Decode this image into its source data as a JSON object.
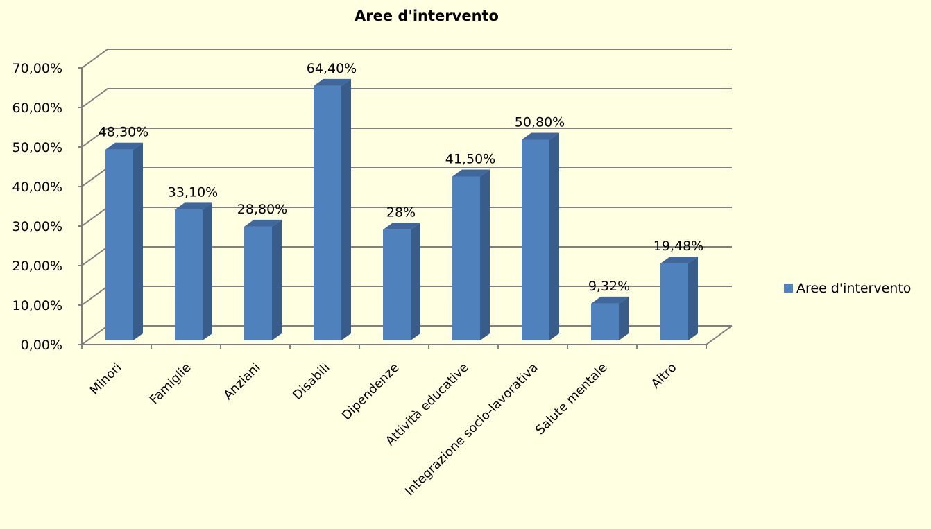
{
  "chart_data": {
    "type": "bar",
    "title": "Aree d'intervento",
    "categories": [
      "Minori",
      "Famiglie",
      "Anziani",
      "Disabili",
      "Dipendenze",
      "Attività educative",
      "Integrazione socio-lavorativa",
      "Salute mentale",
      "Altro"
    ],
    "series": [
      {
        "name": "Aree d'intervento",
        "values": [
          48.3,
          33.1,
          28.8,
          64.4,
          28,
          41.5,
          50.8,
          9.32,
          19.48
        ],
        "labels": [
          "48,30%",
          "33,10%",
          "28,80%",
          "64,40%",
          "28%",
          "41,50%",
          "50,80%",
          "9,32%",
          "19,48%"
        ],
        "color": "#4F81BD"
      }
    ],
    "y_ticks": [
      "0,00%",
      "10,00%",
      "20,00%",
      "30,00%",
      "40,00%",
      "50,00%",
      "60,00%",
      "70,00%"
    ],
    "ylim": [
      0,
      70
    ],
    "grid": true,
    "legend_position": "right",
    "style": "3d-column"
  }
}
